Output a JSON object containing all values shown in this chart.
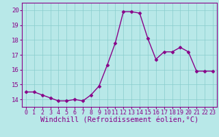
{
  "x": [
    0,
    1,
    2,
    3,
    4,
    5,
    6,
    7,
    8,
    9,
    10,
    11,
    12,
    13,
    14,
    15,
    16,
    17,
    18,
    19,
    20,
    21,
    22,
    23
  ],
  "y": [
    14.5,
    14.5,
    14.3,
    14.1,
    13.9,
    13.9,
    14.0,
    13.9,
    14.3,
    14.9,
    16.3,
    17.8,
    19.9,
    19.9,
    19.8,
    18.1,
    16.7,
    17.2,
    17.2,
    17.5,
    17.2,
    15.9,
    15.9,
    15.9
  ],
  "line_color": "#880088",
  "marker": "D",
  "marker_size": 2.5,
  "line_width": 1.0,
  "xlabel": "Windchill (Refroidissement éolien,°C)",
  "xlabel_fontsize": 7.5,
  "ylim": [
    13.5,
    20.5
  ],
  "xlim": [
    -0.5,
    23.5
  ],
  "yticks": [
    14,
    15,
    16,
    17,
    18,
    19,
    20
  ],
  "xticks": [
    0,
    1,
    2,
    3,
    4,
    5,
    6,
    7,
    8,
    9,
    10,
    11,
    12,
    13,
    14,
    15,
    16,
    17,
    18,
    19,
    20,
    21,
    22,
    23
  ],
  "xtick_fontsize": 6.0,
  "ytick_fontsize": 6.5,
  "grid_color": "#88cccc",
  "bg_color": "#b8e8e8",
  "fig_bg_color": "#b8e8e8",
  "tick_color": "#880088",
  "label_color": "#880088"
}
